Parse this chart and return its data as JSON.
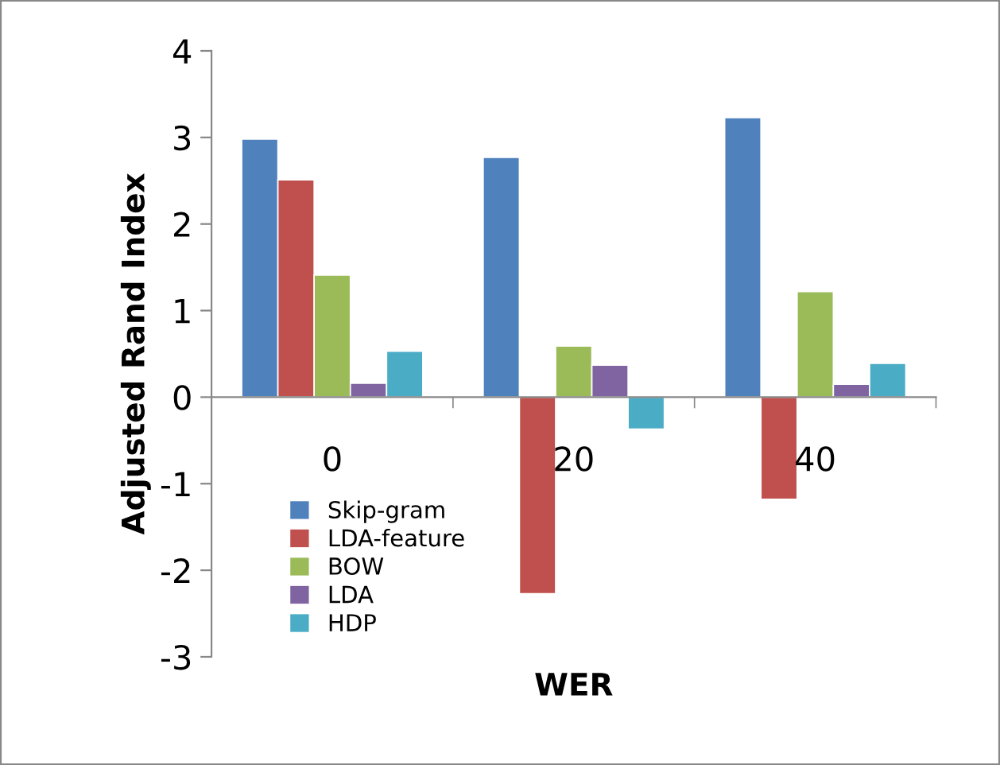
{
  "chart_data": {
    "type": "bar",
    "xlabel": "WER",
    "ylabel": "Adjusted Rand Index",
    "categories": [
      "0",
      "20",
      "40"
    ],
    "series": [
      {
        "name": "Skip-gram",
        "color": "#4f81bd",
        "values": [
          2.98,
          2.77,
          3.23
        ]
      },
      {
        "name": "LDA-feature",
        "color": "#c0504d",
        "values": [
          2.51,
          -2.27,
          -1.18
        ]
      },
      {
        "name": "BOW",
        "color": "#9bbb59",
        "values": [
          1.41,
          0.59,
          1.22
        ]
      },
      {
        "name": "LDA",
        "color": "#8064a2",
        "values": [
          0.16,
          0.37,
          0.15
        ]
      },
      {
        "name": "HDP",
        "color": "#4bacc6",
        "values": [
          0.53,
          -0.37,
          0.39
        ]
      }
    ],
    "ylim": [
      -3,
      4
    ],
    "yticks": [
      -3,
      -2,
      -1,
      0,
      1,
      2,
      3,
      4
    ],
    "grid": false,
    "legend": "bottom left"
  }
}
